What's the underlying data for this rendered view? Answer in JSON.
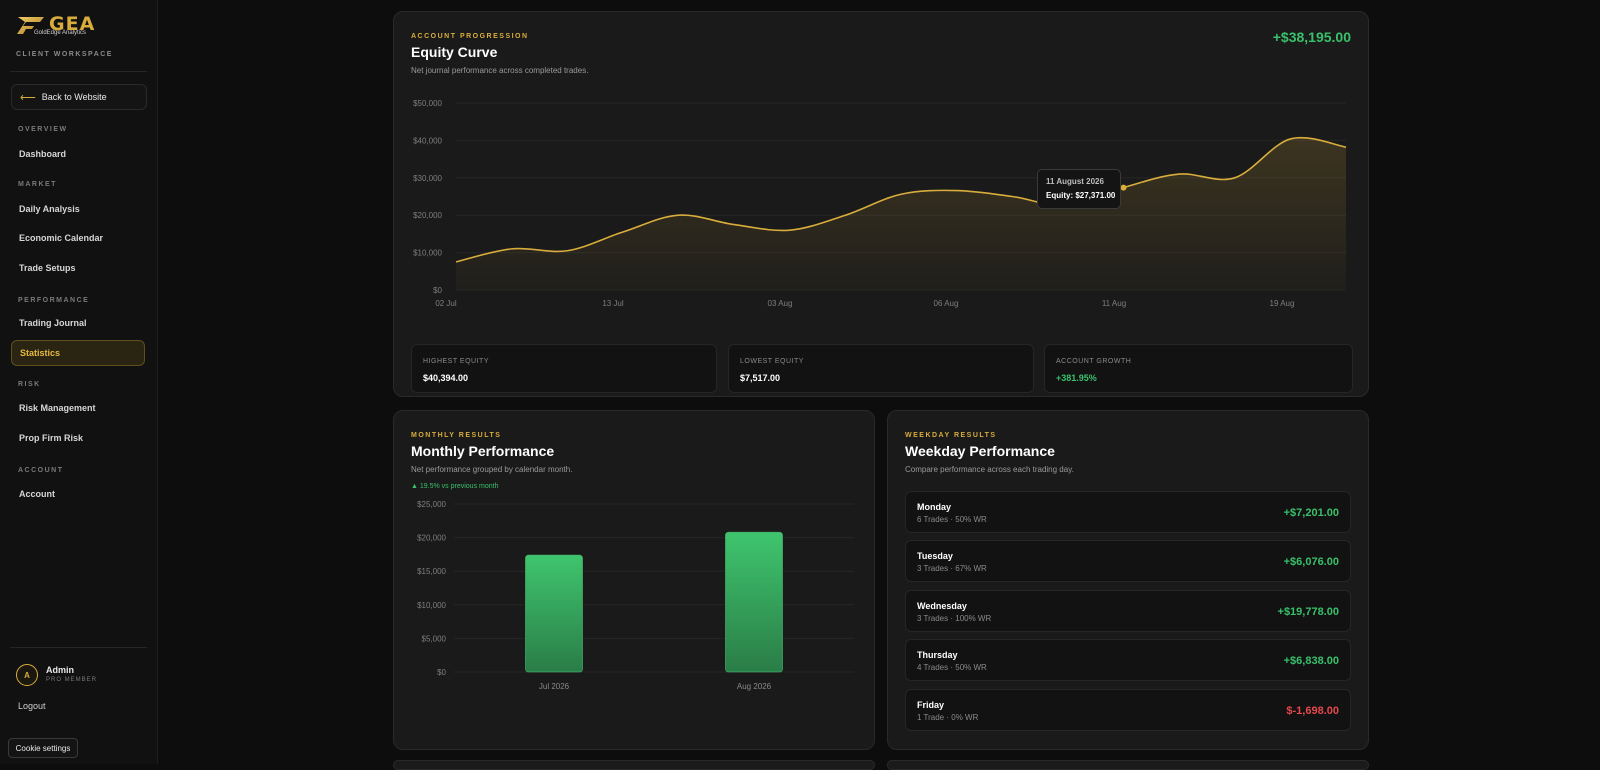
{
  "brand": {
    "name": "GEA",
    "tagline": "GoldEdge Analytics",
    "workspace": "CLIENT WORKSPACE"
  },
  "sidebar": {
    "back_label": "Back to Website",
    "sections": [
      {
        "label": "OVERVIEW",
        "items": [
          {
            "label": "Dashboard"
          }
        ]
      },
      {
        "label": "MARKET",
        "items": [
          {
            "label": "Daily Analysis"
          },
          {
            "label": "Economic Calendar"
          },
          {
            "label": "Trade Setups"
          }
        ]
      },
      {
        "label": "PERFORMANCE",
        "items": [
          {
            "label": "Trading Journal"
          },
          {
            "label": "Statistics"
          }
        ]
      },
      {
        "label": "RISK",
        "items": [
          {
            "label": "Risk Management"
          },
          {
            "label": "Prop Firm Risk"
          }
        ]
      },
      {
        "label": "ACCOUNT",
        "items": [
          {
            "label": "Account"
          }
        ]
      }
    ],
    "active_item": "Statistics",
    "user": {
      "initial": "A",
      "name": "Admin",
      "role": "PRO MEMBER"
    },
    "logout_label": "Logout",
    "cookie_label": "Cookie settings"
  },
  "equity": {
    "eyebrow": "ACCOUNT PROGRESSION",
    "title": "Equity Curve",
    "subtitle": "Net journal performance across completed trades.",
    "total": "+$38,195.00",
    "tooltip": {
      "date": "11 August 2026",
      "value": "Equity: $27,371.00"
    },
    "stats": [
      {
        "label": "HIGHEST EQUITY",
        "value": "$40,394.00",
        "positive": false
      },
      {
        "label": "LOWEST EQUITY",
        "value": "$7,517.00",
        "positive": false
      },
      {
        "label": "ACCOUNT GROWTH",
        "value": "+381.95%",
        "positive": true
      }
    ]
  },
  "monthly": {
    "eyebrow": "MONTHLY RESULTS",
    "title": "Monthly Performance",
    "subtitle": "Net performance grouped by calendar month.",
    "trend": "▲ 19.5% vs previous month"
  },
  "weekday": {
    "eyebrow": "WEEKDAY RESULTS",
    "title": "Weekday Performance",
    "subtitle": "Compare performance across each trading day.",
    "rows": [
      {
        "day": "Monday",
        "meta": "6 Trades · 50% WR",
        "value": "+$7,201.00",
        "positive": true
      },
      {
        "day": "Tuesday",
        "meta": "3 Trades · 67% WR",
        "value": "+$6,076.00",
        "positive": true
      },
      {
        "day": "Wednesday",
        "meta": "3 Trades · 100% WR",
        "value": "+$19,778.00",
        "positive": true
      },
      {
        "day": "Thursday",
        "meta": "4 Trades · 50% WR",
        "value": "+$6,838.00",
        "positive": true
      },
      {
        "day": "Friday",
        "meta": "1 Trade · 0% WR",
        "value": "$-1,698.00",
        "positive": false
      }
    ]
  },
  "colors": {
    "gold": "#d9ad3b",
    "green": "#39c06a",
    "red": "#e5484d"
  },
  "chart_data": [
    {
      "type": "area",
      "title": "Equity Curve",
      "y_ticks": [
        "$0",
        "$10,000",
        "$20,000",
        "$30,000",
        "$40,000",
        "$50,000"
      ],
      "ylim": [
        0,
        50000
      ],
      "x_ticks": [
        "02 Jul",
        "13 Jul",
        "03 Aug",
        "06 Aug",
        "11 Aug",
        "19 Aug"
      ],
      "series": [
        {
          "values": [
            7517,
            11000,
            10500,
            15500,
            20000,
            17500,
            16000,
            20000,
            25600,
            26600,
            25000,
            22500,
            27371,
            31000,
            30000,
            40394,
            38195
          ]
        }
      ],
      "grid": true
    },
    {
      "type": "bar",
      "title": "Monthly Performance",
      "categories": [
        "Jul 2026",
        "Aug 2026"
      ],
      "values": [
        17400,
        20795
      ],
      "y_ticks": [
        "$0",
        "$5,000",
        "$10,000",
        "$15,000",
        "$20,000",
        "$25,000"
      ],
      "ylim": [
        0,
        25000
      ],
      "grid": true
    }
  ]
}
